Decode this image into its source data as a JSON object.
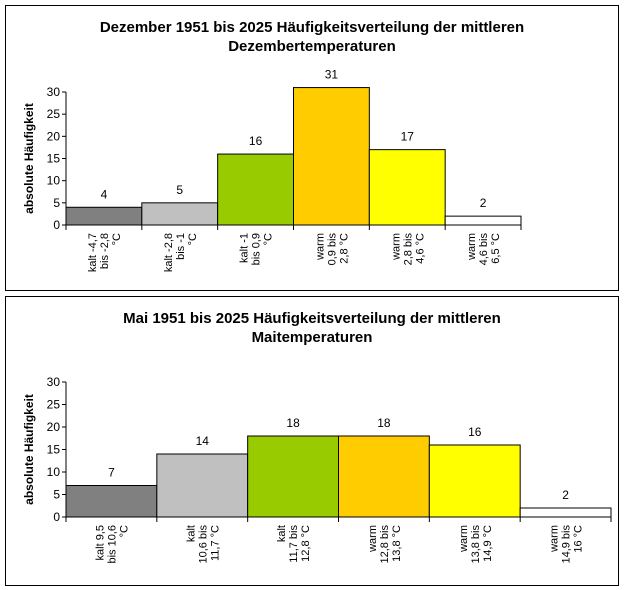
{
  "chart_data": [
    {
      "type": "bar",
      "title": "Dezember 1951 bis 2025 Häufigkeitsverteilung der mittleren",
      "subtitle": "Dezembertemperaturen",
      "ylabel": "absolute Häufigkeit",
      "xlabel": "",
      "ylim": [
        0,
        30
      ],
      "yticks": [
        "0",
        "5",
        "10",
        "15",
        "20",
        "25",
        "30"
      ],
      "grid": false,
      "categories": [
        [
          "kalt -4,7",
          "bis -2,8",
          "°C"
        ],
        [
          "kalt -2,8",
          "bis -1",
          "°C"
        ],
        [
          "kalt -1",
          "bis 0,9",
          "°C"
        ],
        [
          "warm",
          "0,9 bis",
          "2,8 °C"
        ],
        [
          "warm",
          "2,8 bis",
          "4,6 °C"
        ],
        [
          "warm",
          "4,6 bis",
          "6,5 °C"
        ]
      ],
      "values": [
        4,
        5,
        16,
        31,
        17,
        2
      ],
      "value_labels": [
        "4",
        "5",
        "16",
        "31",
        "17",
        "2"
      ],
      "colors": [
        "#808080",
        "#c0c0c0",
        "#99cc00",
        "#ffcc00",
        "#ffff00",
        "#ffffff"
      ]
    },
    {
      "type": "bar",
      "title": "Mai 1951 bis 2025 Häufigkeitsverteilung der mittleren",
      "subtitle": "Maitemperaturen",
      "ylabel": "absolute Häufigkeit",
      "xlabel": "",
      "ylim": [
        0,
        30
      ],
      "yticks": [
        "0",
        "5",
        "10",
        "15",
        "20",
        "25",
        "30"
      ],
      "grid": false,
      "categories": [
        [
          "kalt 9,5",
          "bis 10,6",
          "°C"
        ],
        [
          "kalt",
          "10,6 bis",
          "11,7 °C"
        ],
        [
          "kalt",
          "11,7 bis",
          "12,8 °C"
        ],
        [
          "warm",
          "12,8 bis",
          "13,8 °C"
        ],
        [
          "warm",
          "13,8 bis",
          "14,9 °C"
        ],
        [
          "warm",
          "14,9 bis",
          "16 °C"
        ]
      ],
      "values": [
        7,
        14,
        18,
        18,
        16,
        2
      ],
      "value_labels": [
        "7",
        "14",
        "18",
        "18",
        "16",
        "2"
      ],
      "colors": [
        "#808080",
        "#c0c0c0",
        "#99cc00",
        "#ffcc00",
        "#ffff00",
        "#ffffff"
      ]
    }
  ]
}
